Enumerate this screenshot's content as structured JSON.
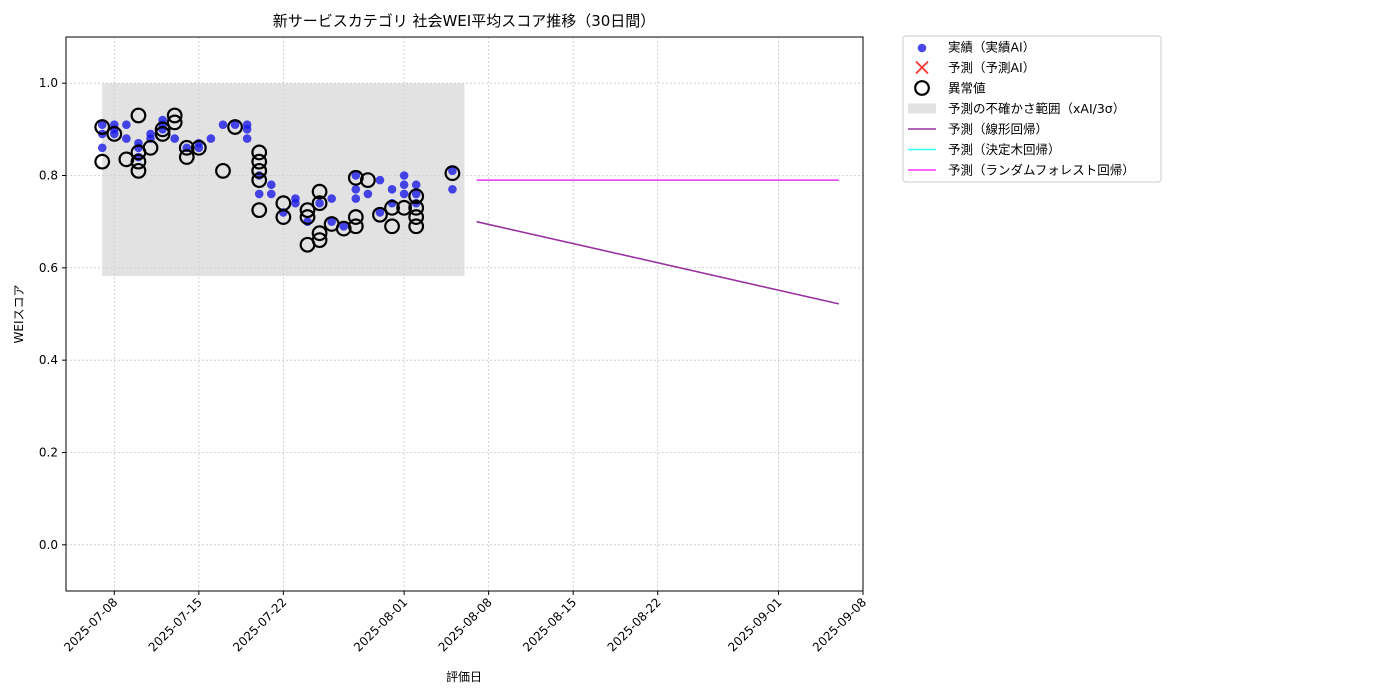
{
  "chart_data": {
    "type": "scatter",
    "title": "新サービスカテゴリ 社会WEI平均スコア推移（30日間）",
    "xlabel": "評価日",
    "ylabel": "WEIスコア",
    "ylim": [
      -0.1,
      1.1
    ],
    "xlim": [
      "2025-07-04",
      "2025-09-08"
    ],
    "x_ticks": [
      "2025-07-08",
      "2025-07-15",
      "2025-07-22",
      "2025-08-01",
      "2025-08-08",
      "2025-08-15",
      "2025-08-22",
      "2025-09-01",
      "2025-09-08"
    ],
    "y_ticks": [
      0.0,
      0.2,
      0.4,
      0.6,
      0.8,
      1.0
    ],
    "grid": true,
    "legend_position": "outside-right",
    "uncertainty_band": {
      "x_start": "2025-07-07",
      "x_end": "2025-08-06",
      "y_low": 0.582,
      "y_high": 1.0,
      "label": "予測の不確かさ範囲（xAI/3σ）",
      "color": "#d3d3d3"
    },
    "series": [
      {
        "name": "実績（実績AI）",
        "kind": "scatter",
        "color": "#1a1ae6",
        "points": [
          [
            "2025-07-07",
            0.86
          ],
          [
            "2025-07-07",
            0.89
          ],
          [
            "2025-07-07",
            0.91
          ],
          [
            "2025-07-08",
            0.91
          ],
          [
            "2025-07-08",
            0.89
          ],
          [
            "2025-07-08",
            0.9
          ],
          [
            "2025-07-09",
            0.91
          ],
          [
            "2025-07-09",
            0.88
          ],
          [
            "2025-07-10",
            0.84
          ],
          [
            "2025-07-10",
            0.86
          ],
          [
            "2025-07-10",
            0.87
          ],
          [
            "2025-07-11",
            0.89
          ],
          [
            "2025-07-11",
            0.88
          ],
          [
            "2025-07-12",
            0.91
          ],
          [
            "2025-07-12",
            0.92
          ],
          [
            "2025-07-12",
            0.9
          ],
          [
            "2025-07-13",
            0.88
          ],
          [
            "2025-07-14",
            0.86
          ],
          [
            "2025-07-15",
            0.87
          ],
          [
            "2025-07-15",
            0.86
          ],
          [
            "2025-07-16",
            0.88
          ],
          [
            "2025-07-17",
            0.91
          ],
          [
            "2025-07-18",
            0.91
          ],
          [
            "2025-07-19",
            0.88
          ],
          [
            "2025-07-19",
            0.91
          ],
          [
            "2025-07-19",
            0.9
          ],
          [
            "2025-07-20",
            0.8
          ],
          [
            "2025-07-20",
            0.76
          ],
          [
            "2025-07-21",
            0.78
          ],
          [
            "2025-07-21",
            0.76
          ],
          [
            "2025-07-22",
            0.72
          ],
          [
            "2025-07-23",
            0.75
          ],
          [
            "2025-07-23",
            0.74
          ],
          [
            "2025-07-24",
            0.7
          ],
          [
            "2025-07-25",
            0.74
          ],
          [
            "2025-07-26",
            0.75
          ],
          [
            "2025-07-26",
            0.7
          ],
          [
            "2025-07-27",
            0.69
          ],
          [
            "2025-07-28",
            0.75
          ],
          [
            "2025-07-28",
            0.77
          ],
          [
            "2025-07-28",
            0.8
          ],
          [
            "2025-07-29",
            0.76
          ],
          [
            "2025-07-30",
            0.79
          ],
          [
            "2025-07-30",
            0.72
          ],
          [
            "2025-07-31",
            0.77
          ],
          [
            "2025-07-31",
            0.74
          ],
          [
            "2025-08-01",
            0.76
          ],
          [
            "2025-08-01",
            0.78
          ],
          [
            "2025-08-01",
            0.8
          ],
          [
            "2025-08-02",
            0.78
          ],
          [
            "2025-08-02",
            0.74
          ],
          [
            "2025-08-02",
            0.76
          ],
          [
            "2025-08-05",
            0.81
          ],
          [
            "2025-08-05",
            0.77
          ]
        ]
      },
      {
        "name": "予測（予測AI）",
        "kind": "x-marker",
        "color": "#ff3333",
        "points": []
      },
      {
        "name": "異常値",
        "kind": "open-circle",
        "color": "#000000",
        "points": [
          [
            "2025-07-07",
            0.905
          ],
          [
            "2025-07-07",
            0.83
          ],
          [
            "2025-07-08",
            0.89
          ],
          [
            "2025-07-09",
            0.835
          ],
          [
            "2025-07-10",
            0.81
          ],
          [
            "2025-07-10",
            0.83
          ],
          [
            "2025-07-10",
            0.85
          ],
          [
            "2025-07-10",
            0.93
          ],
          [
            "2025-07-11",
            0.86
          ],
          [
            "2025-07-12",
            0.9
          ],
          [
            "2025-07-12",
            0.89
          ],
          [
            "2025-07-13",
            0.915
          ],
          [
            "2025-07-13",
            0.93
          ],
          [
            "2025-07-14",
            0.86
          ],
          [
            "2025-07-14",
            0.84
          ],
          [
            "2025-07-15",
            0.86
          ],
          [
            "2025-07-17",
            0.81
          ],
          [
            "2025-07-18",
            0.905
          ],
          [
            "2025-07-20",
            0.85
          ],
          [
            "2025-07-20",
            0.83
          ],
          [
            "2025-07-20",
            0.81
          ],
          [
            "2025-07-20",
            0.79
          ],
          [
            "2025-07-20",
            0.725
          ],
          [
            "2025-07-22",
            0.74
          ],
          [
            "2025-07-22",
            0.71
          ],
          [
            "2025-07-24",
            0.725
          ],
          [
            "2025-07-24",
            0.71
          ],
          [
            "2025-07-24",
            0.65
          ],
          [
            "2025-07-25",
            0.765
          ],
          [
            "2025-07-25",
            0.74
          ],
          [
            "2025-07-25",
            0.675
          ],
          [
            "2025-07-25",
            0.66
          ],
          [
            "2025-07-26",
            0.695
          ],
          [
            "2025-07-27",
            0.685
          ],
          [
            "2025-07-28",
            0.795
          ],
          [
            "2025-07-28",
            0.71
          ],
          [
            "2025-07-28",
            0.69
          ],
          [
            "2025-07-29",
            0.79
          ],
          [
            "2025-07-30",
            0.715
          ],
          [
            "2025-07-31",
            0.73
          ],
          [
            "2025-07-31",
            0.69
          ],
          [
            "2025-08-01",
            0.73
          ],
          [
            "2025-08-02",
            0.755
          ],
          [
            "2025-08-02",
            0.73
          ],
          [
            "2025-08-02",
            0.71
          ],
          [
            "2025-08-02",
            0.69
          ],
          [
            "2025-08-05",
            0.805
          ]
        ]
      },
      {
        "name": "予測（線形回帰）",
        "kind": "line",
        "color": "#9932a0",
        "points": [
          [
            "2025-08-07",
            0.7
          ],
          [
            "2025-09-06",
            0.522
          ]
        ]
      },
      {
        "name": "予測（決定木回帰）",
        "kind": "line",
        "color": "#33ffff",
        "points": [
          [
            "2025-08-07",
            0.79
          ],
          [
            "2025-09-06",
            0.79
          ]
        ]
      },
      {
        "name": "予測（ランダムフォレスト回帰）",
        "kind": "line",
        "color": "#ff33ff",
        "points": [
          [
            "2025-08-07",
            0.79
          ],
          [
            "2025-09-06",
            0.79
          ]
        ]
      }
    ],
    "legend": [
      {
        "label": "実績（実績AI）",
        "kind": "dot",
        "color": "#1a1ae6"
      },
      {
        "label": "予測（予測AI）",
        "kind": "x",
        "color": "#ff3333"
      },
      {
        "label": "異常値",
        "kind": "ring",
        "color": "#000000"
      },
      {
        "label": "予測の不確かさ範囲（xAI/3σ）",
        "kind": "patch",
        "color": "#d3d3d3"
      },
      {
        "label": "予測（線形回帰）",
        "kind": "line",
        "color": "#9932a0"
      },
      {
        "label": "予測（決定木回帰）",
        "kind": "line",
        "color": "#33ffff"
      },
      {
        "label": "予測（ランダムフォレスト回帰）",
        "kind": "line",
        "color": "#ff33ff"
      }
    ]
  }
}
